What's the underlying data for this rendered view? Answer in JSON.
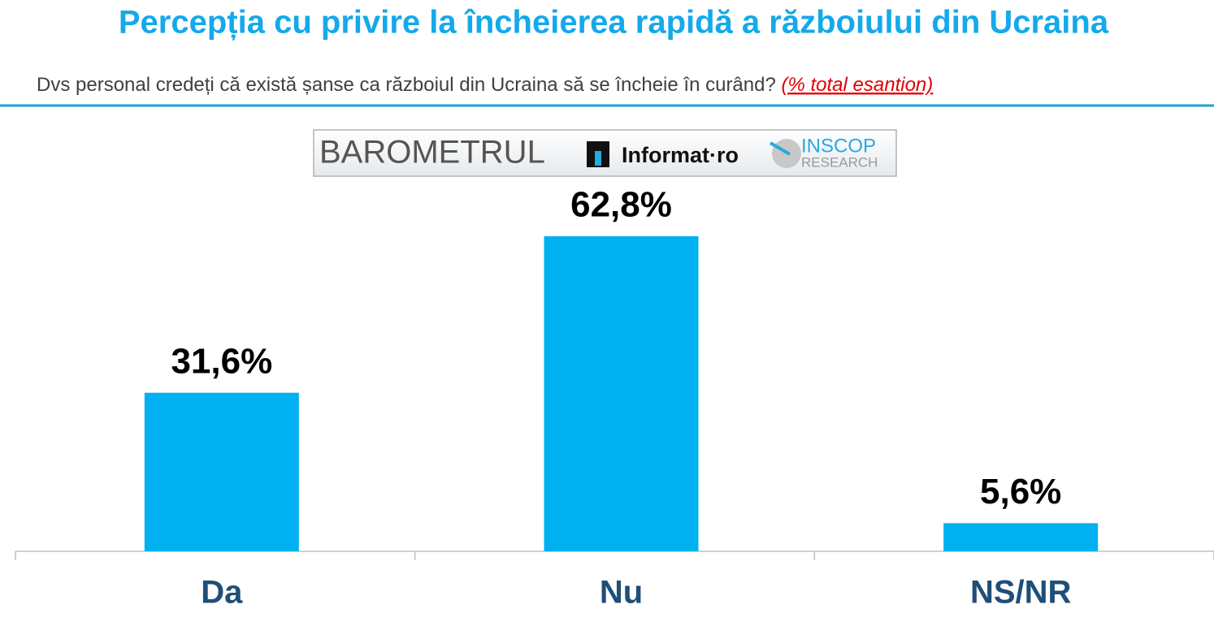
{
  "chart_data": {
    "type": "bar",
    "title": "Percepția cu privire la încheierea rapidă a războiului din Ucraina",
    "subtitle": "Dvs personal credeți că există șanse ca războiul din Ucraina să se încheie în curând?",
    "subtitle_note": "(% total esantion)",
    "branding": {
      "barometer": "BAROMETRUL",
      "informat": "Informat·ro",
      "inscop": "INSCOP",
      "research": "RESEARCH"
    },
    "categories": [
      "Da",
      "Nu",
      "NS/NR"
    ],
    "values": [
      31.6,
      62.8,
      5.6
    ],
    "value_labels": [
      "31,6%",
      "62,8%",
      "5,6%"
    ],
    "color": "#00b0f0"
  }
}
